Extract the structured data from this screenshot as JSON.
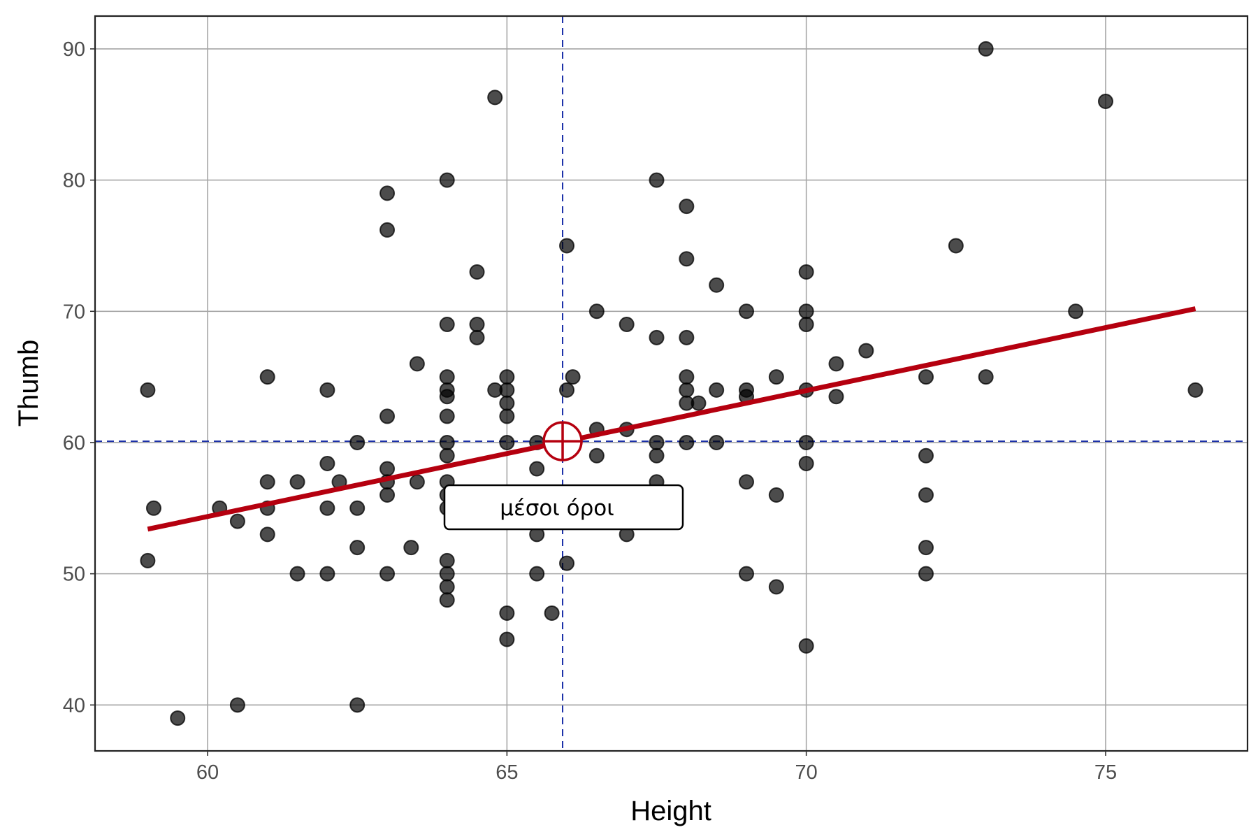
{
  "chart_data": {
    "type": "scatter",
    "title": "",
    "xlabel": "Height",
    "ylabel": "Thumb",
    "xlim": [
      58.12,
      77.37
    ],
    "ylim": [
      36.5,
      92.5
    ],
    "xticks": [
      60,
      65,
      70,
      75
    ],
    "yticks": [
      40,
      50,
      60,
      70,
      80,
      90
    ],
    "grid": true,
    "points": [
      [
        59,
        64
      ],
      [
        59.1,
        55
      ],
      [
        59,
        51
      ],
      [
        59.5,
        39
      ],
      [
        60.2,
        55
      ],
      [
        60.5,
        54
      ],
      [
        60.5,
        40
      ],
      [
        61,
        65
      ],
      [
        61,
        57
      ],
      [
        61,
        55
      ],
      [
        61,
        53
      ],
      [
        61.5,
        57
      ],
      [
        61.5,
        50
      ],
      [
        62,
        64
      ],
      [
        62,
        58.4
      ],
      [
        62,
        55
      ],
      [
        62,
        50
      ],
      [
        62.2,
        57
      ],
      [
        62.5,
        60
      ],
      [
        62.5,
        55
      ],
      [
        62.5,
        52
      ],
      [
        62.5,
        40
      ],
      [
        63,
        79
      ],
      [
        63,
        76.2
      ],
      [
        63,
        62
      ],
      [
        63,
        58
      ],
      [
        63,
        57
      ],
      [
        63,
        56
      ],
      [
        63,
        50
      ],
      [
        63.4,
        52
      ],
      [
        63.5,
        66
      ],
      [
        63.5,
        57
      ],
      [
        64,
        80
      ],
      [
        64,
        69
      ],
      [
        64,
        65
      ],
      [
        64,
        64
      ],
      [
        64,
        63.5
      ],
      [
        64,
        62
      ],
      [
        64,
        60
      ],
      [
        64,
        59
      ],
      [
        64,
        57
      ],
      [
        64,
        56
      ],
      [
        64,
        55
      ],
      [
        64,
        51
      ],
      [
        64,
        50
      ],
      [
        64,
        49
      ],
      [
        64,
        48
      ],
      [
        64.5,
        73
      ],
      [
        64.5,
        69
      ],
      [
        64.5,
        68
      ],
      [
        64.8,
        86.3
      ],
      [
        64.8,
        64
      ],
      [
        65,
        65
      ],
      [
        65,
        64
      ],
      [
        65,
        63
      ],
      [
        65,
        62
      ],
      [
        65,
        60
      ],
      [
        65,
        47
      ],
      [
        65,
        45
      ],
      [
        65.5,
        60
      ],
      [
        65.5,
        58
      ],
      [
        65.5,
        53
      ],
      [
        65.5,
        50
      ],
      [
        65.75,
        47
      ],
      [
        66,
        75
      ],
      [
        66,
        64
      ],
      [
        66.1,
        65
      ],
      [
        66,
        50.8
      ],
      [
        66.5,
        70
      ],
      [
        66.5,
        61
      ],
      [
        66.5,
        59
      ],
      [
        67,
        69
      ],
      [
        67,
        61
      ],
      [
        67,
        53
      ],
      [
        67.5,
        80
      ],
      [
        67.5,
        68
      ],
      [
        67.5,
        60
      ],
      [
        67.5,
        59
      ],
      [
        67.5,
        57
      ],
      [
        68,
        78
      ],
      [
        68,
        74
      ],
      [
        68,
        68
      ],
      [
        68,
        65
      ],
      [
        68,
        64
      ],
      [
        68,
        63
      ],
      [
        68.2,
        63
      ],
      [
        68,
        60
      ],
      [
        68.5,
        72
      ],
      [
        68.5,
        64
      ],
      [
        68.5,
        60
      ],
      [
        69,
        70
      ],
      [
        69,
        64
      ],
      [
        69,
        63.5
      ],
      [
        69,
        57
      ],
      [
        69,
        50
      ],
      [
        69.5,
        65
      ],
      [
        69.5,
        56
      ],
      [
        69.5,
        49
      ],
      [
        70,
        73
      ],
      [
        70,
        70
      ],
      [
        70,
        69
      ],
      [
        70,
        64
      ],
      [
        70,
        60
      ],
      [
        70,
        58.4
      ],
      [
        70,
        44.5
      ],
      [
        70.5,
        66
      ],
      [
        70.5,
        63.5
      ],
      [
        71,
        67
      ],
      [
        72,
        65
      ],
      [
        72,
        59
      ],
      [
        72,
        56
      ],
      [
        72,
        52
      ],
      [
        72,
        50
      ],
      [
        72.5,
        75
      ],
      [
        73,
        90
      ],
      [
        73,
        65
      ],
      [
        74.5,
        70
      ],
      [
        75,
        86
      ],
      [
        76.5,
        64
      ]
    ],
    "regression_line": {
      "x": [
        59,
        76.5
      ],
      "y": [
        53.4,
        70.2
      ],
      "color": "#b5000f"
    },
    "mean_point": {
      "x": 65.93,
      "y": 60.1,
      "color": "#b5000f"
    },
    "mean_lines_color": "#1a2fa8",
    "annotation": "μέσοι όροι",
    "point_color": "#000000"
  }
}
